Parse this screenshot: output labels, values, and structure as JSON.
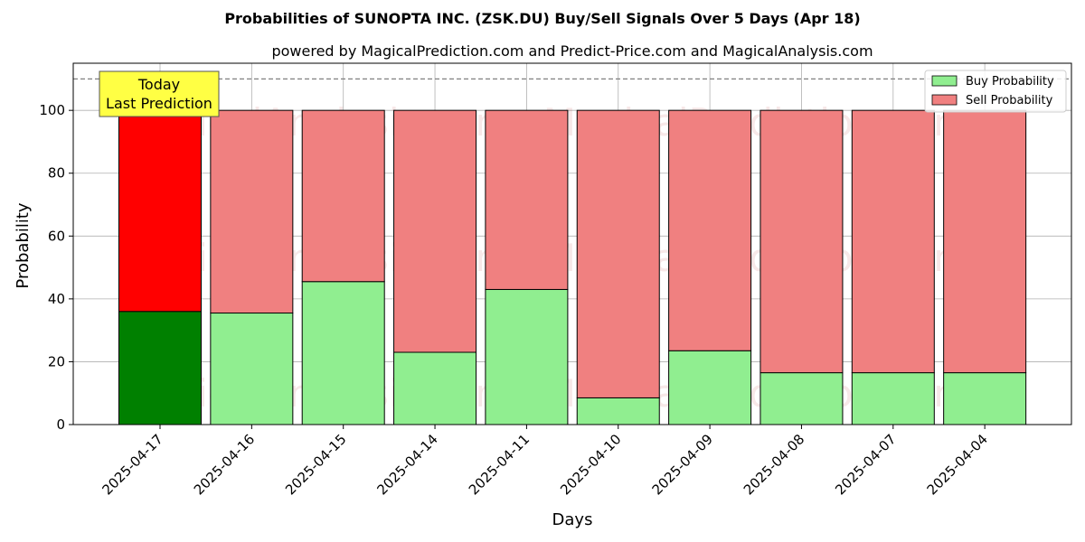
{
  "chart_data": {
    "type": "bar",
    "stacked": true,
    "title": "Probabilities of SUNOPTA INC. (ZSK.DU) Buy/Sell Signals Over 5 Days (Apr 18)",
    "subtitle": "powered by MagicalPrediction.com and Predict-Price.com and MagicalAnalysis.com",
    "xlabel": "Days",
    "ylabel": "Probability",
    "ylim": [
      0,
      115
    ],
    "yticks": [
      0,
      20,
      40,
      60,
      80,
      100
    ],
    "grid": true,
    "reference_line": 110,
    "categories": [
      "2025-04-17",
      "2025-04-16",
      "2025-04-15",
      "2025-04-14",
      "2025-04-11",
      "2025-04-10",
      "2025-04-09",
      "2025-04-08",
      "2025-04-07",
      "2025-04-04"
    ],
    "series": [
      {
        "name": "Buy Probability",
        "values": [
          36,
          35.5,
          45.5,
          23,
          43,
          8.5,
          23.5,
          16.5,
          16.5,
          16.5
        ],
        "color": "#90ee90",
        "highlight_color": "#008000"
      },
      {
        "name": "Sell Probability",
        "values": [
          64,
          64.5,
          54.5,
          77,
          57,
          91.5,
          76.5,
          83.5,
          83.5,
          83.5
        ],
        "color": "#f08080",
        "highlight_color": "#ff0000"
      }
    ],
    "legend_position": "top-right",
    "annotation": {
      "lines": [
        "Today",
        "Last Prediction"
      ],
      "color": "#ffff44",
      "target_index": 0
    },
    "watermarks": [
      "MagicalAnalysis.com",
      "MagicalPrediction.com"
    ]
  }
}
